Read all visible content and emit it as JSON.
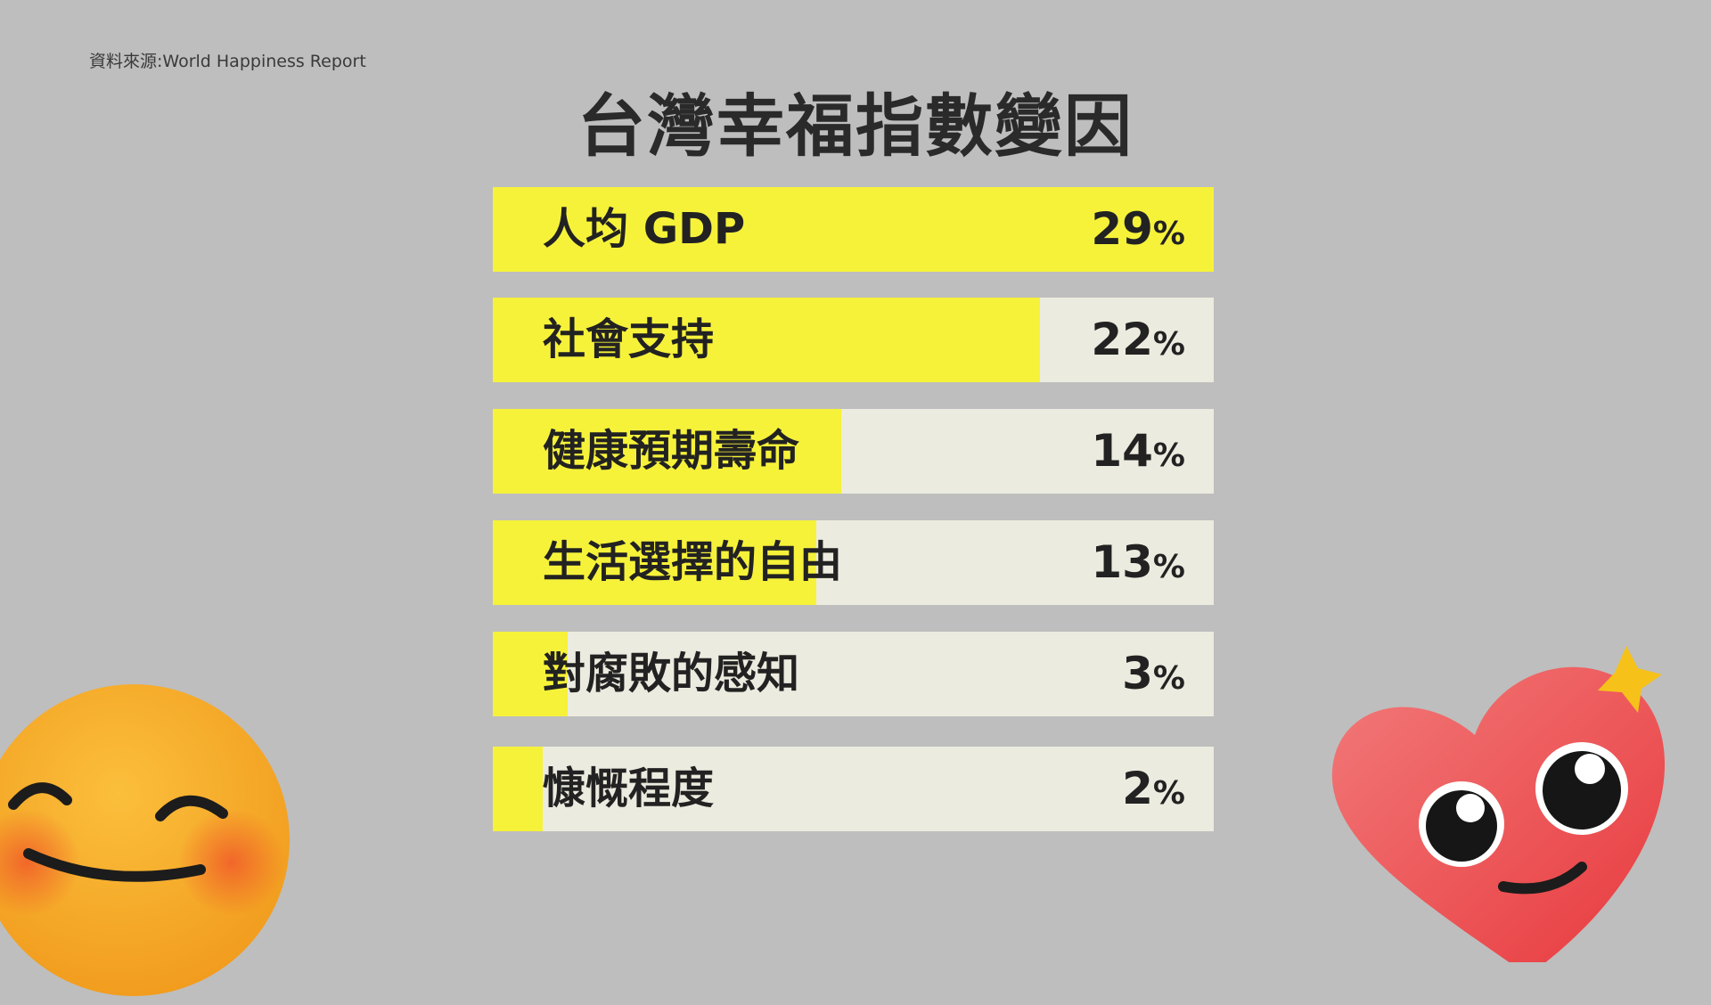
{
  "source": "資料來源:World Happiness Report",
  "chart_data": {
    "type": "bar",
    "orientation": "horizontal",
    "title": "台灣幸福指數變因",
    "categories": [
      "人均 GDP",
      "社會支持",
      "健康預期壽命",
      "生活選擇的自由",
      "對腐敗的感知",
      "慷慨程度"
    ],
    "values": [
      29,
      22,
      14,
      13,
      3,
      2
    ],
    "unit": "%",
    "xlim": [
      0,
      29
    ],
    "colors": {
      "fill": "#f6f23a",
      "track": "#ecebdf",
      "background": "#bebebe"
    }
  },
  "decorations": {
    "left": "smiling-face-emoji",
    "right": "heart-face-emoji"
  }
}
